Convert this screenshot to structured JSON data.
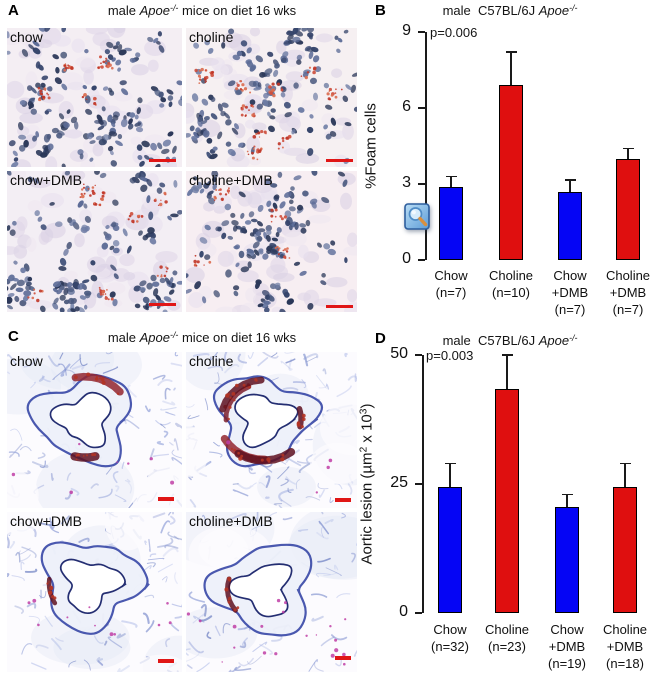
{
  "panels": {
    "a": {
      "letter": "A",
      "title": "male Apoe-/- mice on diet 16 wks",
      "title_parts": [
        {
          "text": "male ",
          "style": "plain"
        },
        {
          "text": "Apoe",
          "style": "italic"
        },
        {
          "text": "-/-",
          "style": "sup-italic"
        },
        {
          "text": " mice on diet 16 wks",
          "style": "plain"
        }
      ],
      "images": [
        {
          "label": "chow",
          "seed": 11,
          "bg": "#f4eef3",
          "nuclei": 165,
          "red_clusters": 4
        },
        {
          "label": "choline",
          "seed": 27,
          "bg": "#f6f0f2",
          "nuclei": 150,
          "red_clusters": 10
        },
        {
          "label": "chow+DMB",
          "seed": 33,
          "bg": "#f3eef4",
          "nuclei": 155,
          "red_clusters": 7
        },
        {
          "label": "choline+DMB",
          "seed": 46,
          "bg": "#f7eef2",
          "nuclei": 150,
          "red_clusters": 4
        }
      ],
      "scalebar_color": "#e01616"
    },
    "b": {
      "letter": "B"
    },
    "c": {
      "letter": "C",
      "title": "male Apoe-/- mice on diet 16 wks",
      "title_parts": [
        {
          "text": "male ",
          "style": "plain"
        },
        {
          "text": "Apoe",
          "style": "italic"
        },
        {
          "text": "-/-",
          "style": "sup-italic"
        },
        {
          "text": " mice on diet 16 wks",
          "style": "plain"
        }
      ],
      "images": [
        {
          "label": "chow",
          "seed": 55,
          "lesion": 0.4,
          "magenta": 0.3,
          "density": 0.85
        },
        {
          "label": "choline",
          "seed": 66,
          "lesion": 1.0,
          "magenta": 0.2,
          "density": 1.0
        },
        {
          "label": "chow+DMB",
          "seed": 78,
          "lesion": 0.1,
          "magenta": 0.5,
          "density": 0.9
        },
        {
          "label": "choline+DMB",
          "seed": 89,
          "lesion": 0.15,
          "magenta": 0.9,
          "density": 0.7
        }
      ],
      "scalebar_color": "#e01616"
    },
    "d": {
      "letter": "D"
    }
  },
  "cursor": {
    "icon": "zoom-magnifier"
  },
  "colors": {
    "bar_blue": "#0505f5",
    "bar_red": "#df0f0f",
    "scalebar": "#e01616"
  },
  "chart_data": [
    {
      "panel": "B",
      "type": "bar",
      "title": "male C57BL/6J Apoe-/-",
      "title_parts": [
        {
          "text": "male  C57BL/6J ",
          "style": "plain"
        },
        {
          "text": "Apoe",
          "style": "italic"
        },
        {
          "text": "-/-",
          "style": "sup-italic"
        }
      ],
      "p_value": "p=0.006",
      "ylabel": "%Foam cells",
      "ylabel_parts": [
        {
          "text": "%Foam cells",
          "style": "plain"
        }
      ],
      "ylim": [
        0,
        9
      ],
      "yticks": [
        0,
        3,
        6,
        9
      ],
      "categories": [
        [
          "Chow",
          "(n=7)"
        ],
        [
          "Choline",
          "(n=10)"
        ],
        [
          "Chow",
          "+DMB",
          "(n=7)"
        ],
        [
          "Choline",
          "+DMB",
          "(n=7)"
        ]
      ],
      "values": [
        2.9,
        6.9,
        2.7,
        4.0
      ],
      "errors": [
        0.4,
        1.3,
        0.45,
        0.4
      ],
      "bar_colors": [
        "#0505f5",
        "#df0f0f",
        "#0505f5",
        "#df0f0f"
      ],
      "grid": false,
      "legend": null
    },
    {
      "panel": "D",
      "type": "bar",
      "title": "male C57BL/6J Apoe-/-",
      "title_parts": [
        {
          "text": "male  C57BL/6J ",
          "style": "plain"
        },
        {
          "text": "Apoe",
          "style": "italic"
        },
        {
          "text": "-/-",
          "style": "sup-italic"
        }
      ],
      "p_value": "p=0.003",
      "ylabel": "Aortic lesion (µm2 x 103)",
      "ylabel_parts": [
        {
          "text": "Aortic lesion (µm",
          "style": "plain"
        },
        {
          "text": "2",
          "style": "sup"
        },
        {
          "text": " x 10",
          "style": "plain"
        },
        {
          "text": "3",
          "style": "sup"
        },
        {
          "text": ")",
          "style": "plain"
        }
      ],
      "ylim": [
        0,
        50
      ],
      "yticks": [
        0,
        25,
        50
      ],
      "categories": [
        [
          "Chow",
          "(n=32)"
        ],
        [
          "Choline",
          "(n=23)"
        ],
        [
          "Chow",
          "+DMB",
          "(n=19)"
        ],
        [
          "Choline",
          "+DMB",
          "(n=18)"
        ]
      ],
      "values": [
        24.5,
        43.5,
        20.5,
        24.5
      ],
      "errors": [
        4.5,
        6.5,
        2.5,
        4.5
      ],
      "bar_colors": [
        "#0505f5",
        "#df0f0f",
        "#0505f5",
        "#df0f0f"
      ],
      "grid": false,
      "legend": null
    }
  ]
}
